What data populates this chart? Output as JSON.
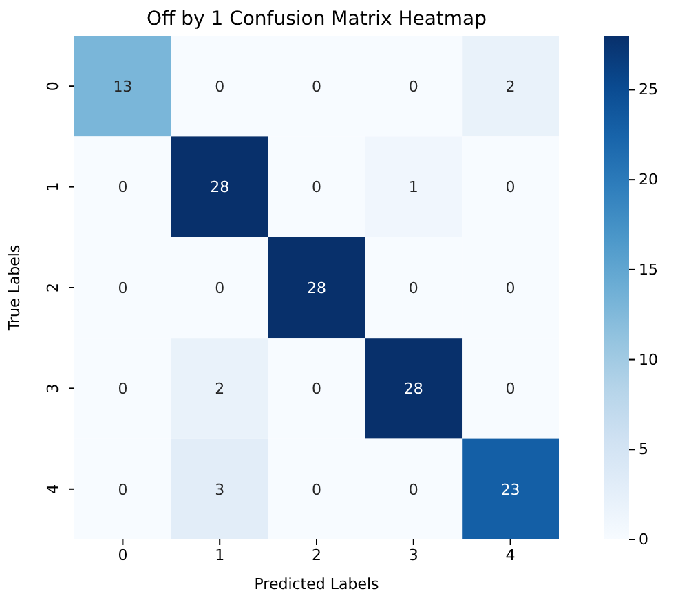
{
  "chart_data": {
    "type": "heatmap",
    "title": "Off by 1 Confusion Matrix Heatmap",
    "xlabel": "Predicted Labels",
    "ylabel": "True Labels",
    "categories": [
      "0",
      "1",
      "2",
      "3",
      "4"
    ],
    "y_categories": [
      "0",
      "1",
      "2",
      "3",
      "4"
    ],
    "cells": [
      [
        13,
        0,
        0,
        0,
        2
      ],
      [
        0,
        28,
        0,
        1,
        0
      ],
      [
        0,
        0,
        28,
        0,
        0
      ],
      [
        0,
        2,
        0,
        28,
        0
      ],
      [
        0,
        3,
        0,
        0,
        23
      ]
    ],
    "data_labels": true,
    "clim": [
      0,
      28
    ],
    "cticks": [
      0,
      5,
      10,
      15,
      20,
      25
    ]
  }
}
